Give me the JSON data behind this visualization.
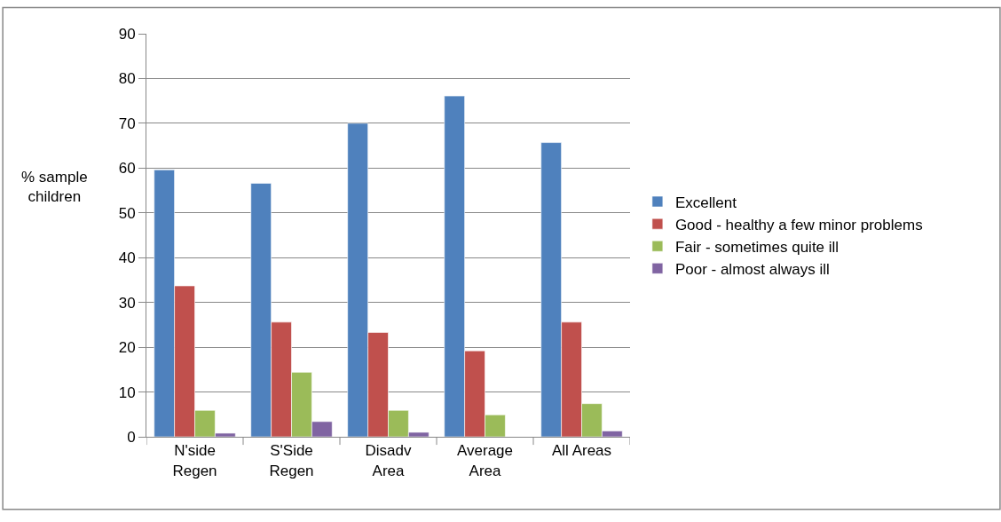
{
  "chart_data": {
    "type": "bar",
    "ylabel": "% sample children",
    "categories": [
      "N'side\nRegen",
      "S'Side\nRegen",
      "Disadv\nArea",
      "Average\nArea",
      "All Areas"
    ],
    "series": [
      {
        "name": "Excellent",
        "color": "#4f81bd",
        "values": [
          59.6,
          56.6,
          70,
          76.1,
          65.7
        ]
      },
      {
        "name": "Good - healthy a few minor problems",
        "color": "#c0504d",
        "values": [
          33.7,
          25.6,
          23.3,
          19.2,
          25.6
        ]
      },
      {
        "name": "Fair - sometimes quite ill",
        "color": "#9bbb59",
        "values": [
          5.9,
          14.4,
          5.9,
          4.9,
          7.4
        ]
      },
      {
        "name": "Poor - almost always ill",
        "color": "#8064a2",
        "values": [
          0.8,
          3.4,
          1.0,
          null,
          1.3
        ]
      }
    ],
    "ylim": [
      0,
      90
    ],
    "yticks": [
      0,
      10,
      20,
      30,
      40,
      50,
      60,
      70,
      80,
      90
    ],
    "grid": "y",
    "legend": "right"
  }
}
